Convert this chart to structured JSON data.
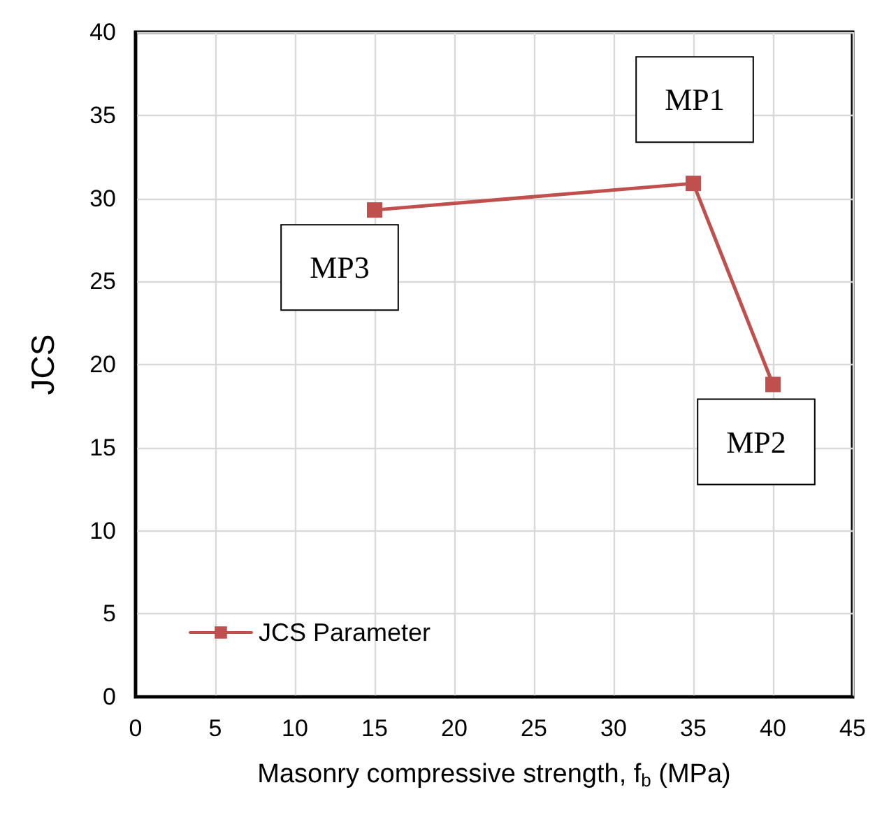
{
  "chart_data": {
    "type": "line",
    "xlabel": "Masonry compressive strength, f$_{b}$ (MPa)",
    "ylabel": "JCS",
    "x": [
      15,
      35,
      40
    ],
    "series": [
      {
        "name": "JCS Parameter",
        "color": "#c0504d",
        "values": [
          29.3,
          30.9,
          18.8
        ]
      }
    ],
    "xlim": [
      0,
      45
    ],
    "xticks": [
      0,
      5,
      10,
      15,
      20,
      25,
      30,
      35,
      40,
      45
    ],
    "ylim": [
      0,
      40
    ],
    "yticks": [
      0,
      5,
      10,
      15,
      20,
      25,
      30,
      35,
      40
    ],
    "grid": true,
    "legend": "bottom left",
    "marker": "square",
    "line_style": "solid",
    "annotations": [
      {
        "text": "MP1",
        "x": 35,
        "y": 30.9
      },
      {
        "text": "MP2",
        "x": 40,
        "y": 18.8
      },
      {
        "text": "MP3",
        "x": 15,
        "y": 29.3
      }
    ]
  }
}
